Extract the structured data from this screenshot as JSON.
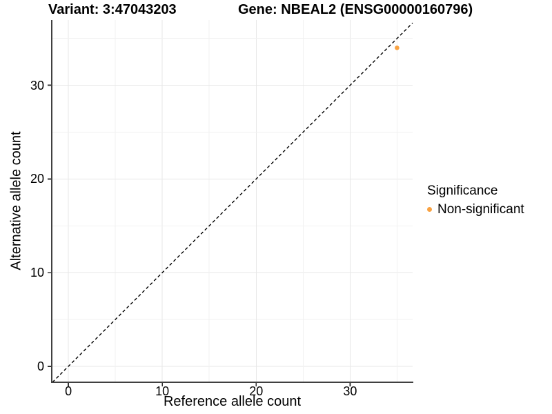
{
  "chart_data": {
    "type": "scatter",
    "titles": {
      "left": "Variant: 3:47043203",
      "right": "Gene: NBEAL2 (ENSG00000160796)"
    },
    "xlabel": "Reference allele count",
    "ylabel": "Alternative allele count",
    "xlim": [
      -1.77,
      36.66
    ],
    "ylim": [
      -1.7,
      36.97
    ],
    "x_ticks": [
      0,
      10,
      20,
      30
    ],
    "y_ticks": [
      0,
      10,
      20,
      30
    ],
    "grid": {
      "show": true,
      "step": 5,
      "major_color": "#E7E7E7",
      "minor_color": "#F1F1F1"
    },
    "axis_color": "#404040",
    "tick_color": "#333333",
    "reference_line": {
      "kind": "identity y=x",
      "style": "dashed",
      "color": "#000000"
    },
    "series": [
      {
        "name": "Non-significant",
        "color": "#F9A242",
        "points": [
          {
            "x": 35,
            "y": 34
          }
        ]
      }
    ],
    "legend": {
      "position": "right",
      "title": "Significance",
      "items": [
        {
          "label": "Non-significant",
          "color": "#F9A242"
        }
      ]
    }
  }
}
